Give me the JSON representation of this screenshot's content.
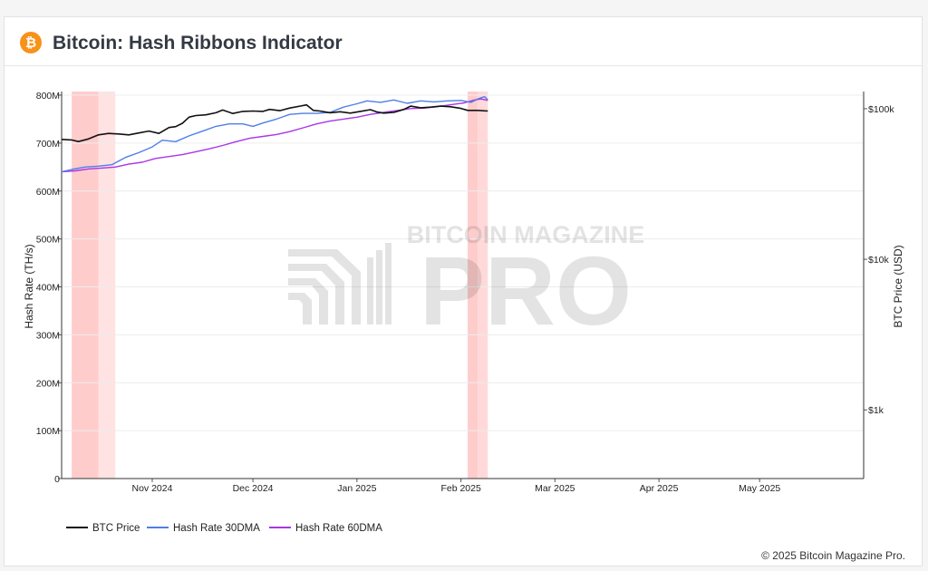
{
  "header": {
    "logo_glyph": "₿",
    "title": "Bitcoin: Hash Ribbons Indicator"
  },
  "footer": {
    "copyright": "© 2025 Bitcoin Magazine Pro."
  },
  "watermark": {
    "top": "BITCOIN MAGAZINE",
    "main": "PRO"
  },
  "chart_data": {
    "type": "line",
    "title": "Bitcoin: Hash Ribbons Indicator",
    "ylabel": "Hash Rate (TH/s)",
    "y2label": "BTC Price (USD)",
    "ylim": [
      0,
      800000000
    ],
    "y_ticks": [
      {
        "value": 0,
        "label": "0"
      },
      {
        "value": 100000000,
        "label": "100M"
      },
      {
        "value": 200000000,
        "label": "200M"
      },
      {
        "value": 300000000,
        "label": "300M"
      },
      {
        "value": 400000000,
        "label": "400M"
      },
      {
        "value": 500000000,
        "label": "500M"
      },
      {
        "value": 600000000,
        "label": "600M"
      },
      {
        "value": 700000000,
        "label": "700M"
      },
      {
        "value": 800000000,
        "label": "800M"
      }
    ],
    "y2_scale": "log",
    "y2lim": [
      350,
      130000
    ],
    "y2_ticks": [
      {
        "value": 1000,
        "label": "$1k"
      },
      {
        "value": 10000,
        "label": "$10k"
      },
      {
        "value": 100000,
        "label": "$100k"
      }
    ],
    "xlim": [
      "2024-10-05",
      "2025-06-01"
    ],
    "x_ticks": [
      {
        "date": "2024-11-01",
        "label": "Nov 2024"
      },
      {
        "date": "2024-12-01",
        "label": "Dec 2024"
      },
      {
        "date": "2025-01-01",
        "label": "Jan 2025"
      },
      {
        "date": "2025-02-01",
        "label": "Feb 2025"
      },
      {
        "date": "2025-03-01",
        "label": "Mar 2025"
      },
      {
        "date": "2025-04-01",
        "label": "Apr 2025"
      },
      {
        "date": "2025-05-01",
        "label": "May 2025"
      }
    ],
    "grid": true,
    "legend_position": "bottom-left",
    "capitulation_bands": [
      {
        "start": "2024-10-08",
        "end": "2024-10-16",
        "color": "#ffcccc"
      },
      {
        "start": "2024-10-16",
        "end": "2024-10-21",
        "color": "#ffe2e2"
      },
      {
        "start": "2025-02-03",
        "end": "2025-02-06",
        "color": "#ffcccc"
      },
      {
        "start": "2025-02-06",
        "end": "2025-02-09",
        "color": "#ffd9d9"
      }
    ],
    "series": [
      {
        "name": "BTC Price",
        "color": "#111111",
        "axis": "right",
        "x": [
          "2024-10-05",
          "2024-10-08",
          "2024-10-10",
          "2024-10-13",
          "2024-10-16",
          "2024-10-19",
          "2024-10-22",
          "2024-10-25",
          "2024-10-28",
          "2024-10-31",
          "2024-11-03",
          "2024-11-06",
          "2024-11-08",
          "2024-11-10",
          "2024-11-12",
          "2024-11-14",
          "2024-11-17",
          "2024-11-20",
          "2024-11-22",
          "2024-11-25",
          "2024-11-28",
          "2024-12-01",
          "2024-12-04",
          "2024-12-06",
          "2024-12-09",
          "2024-12-12",
          "2024-12-15",
          "2024-12-17",
          "2024-12-19",
          "2024-12-21",
          "2024-12-24",
          "2024-12-27",
          "2024-12-30",
          "2025-01-02",
          "2025-01-05",
          "2025-01-07",
          "2025-01-09",
          "2025-01-12",
          "2025-01-15",
          "2025-01-17",
          "2025-01-20",
          "2025-01-23",
          "2025-01-26",
          "2025-01-29",
          "2025-02-01",
          "2025-02-03",
          "2025-02-06",
          "2025-02-09"
        ],
        "values": [
          62500,
          62000,
          60500,
          63000,
          67000,
          68500,
          68000,
          67000,
          69000,
          71000,
          68500,
          75000,
          76000,
          80000,
          88000,
          90000,
          91000,
          94000,
          98000,
          93000,
          96000,
          96500,
          96000,
          99000,
          97000,
          101000,
          104000,
          106000,
          97500,
          96500,
          94000,
          95500,
          93500,
          96000,
          98500,
          95000,
          93500,
          94500,
          99000,
          104000,
          101500,
          102500,
          104000,
          103000,
          100500,
          97500,
          97500,
          96500
        ]
      },
      {
        "name": "Hash Rate 30DMA",
        "color": "#4f7ee8",
        "axis": "left",
        "x": [
          "2024-10-05",
          "2024-10-08",
          "2024-10-12",
          "2024-10-16",
          "2024-10-20",
          "2024-10-24",
          "2024-10-28",
          "2024-11-01",
          "2024-11-04",
          "2024-11-08",
          "2024-11-12",
          "2024-11-16",
          "2024-11-20",
          "2024-11-24",
          "2024-11-28",
          "2024-12-01",
          "2024-12-04",
          "2024-12-08",
          "2024-12-12",
          "2024-12-16",
          "2024-12-20",
          "2024-12-24",
          "2024-12-28",
          "2025-01-01",
          "2025-01-04",
          "2025-01-08",
          "2025-01-12",
          "2025-01-16",
          "2025-01-20",
          "2025-01-24",
          "2025-01-28",
          "2025-02-01",
          "2025-02-04",
          "2025-02-06",
          "2025-02-08",
          "2025-02-09"
        ],
        "values": [
          640000000,
          645000000,
          650000000,
          652000000,
          655000000,
          670000000,
          680000000,
          692000000,
          706000000,
          703000000,
          715000000,
          725000000,
          735000000,
          740000000,
          740000000,
          735000000,
          742000000,
          750000000,
          760000000,
          762000000,
          762000000,
          764000000,
          775000000,
          782000000,
          788000000,
          785000000,
          790000000,
          783000000,
          788000000,
          786000000,
          788000000,
          789000000,
          785000000,
          792000000,
          797000000,
          790000000
        ]
      },
      {
        "name": "Hash Rate 60DMA",
        "color": "#a836e8",
        "axis": "left",
        "x": [
          "2024-10-05",
          "2024-10-09",
          "2024-10-13",
          "2024-10-17",
          "2024-10-21",
          "2024-10-25",
          "2024-10-29",
          "2024-11-02",
          "2024-11-06",
          "2024-11-10",
          "2024-11-14",
          "2024-11-18",
          "2024-11-22",
          "2024-11-26",
          "2024-11-30",
          "2024-12-04",
          "2024-12-08",
          "2024-12-12",
          "2024-12-16",
          "2024-12-20",
          "2024-12-24",
          "2024-12-28",
          "2025-01-01",
          "2025-01-05",
          "2025-01-09",
          "2025-01-13",
          "2025-01-17",
          "2025-01-21",
          "2025-01-25",
          "2025-01-29",
          "2025-02-02",
          "2025-02-05",
          "2025-02-07",
          "2025-02-09"
        ],
        "values": [
          640000000,
          642000000,
          646000000,
          648000000,
          650000000,
          656000000,
          660000000,
          668000000,
          672000000,
          676000000,
          682000000,
          688000000,
          695000000,
          703000000,
          710000000,
          714000000,
          718000000,
          724000000,
          732000000,
          740000000,
          746000000,
          750000000,
          754000000,
          760000000,
          764000000,
          768000000,
          772000000,
          773000000,
          776000000,
          780000000,
          784000000,
          790000000,
          792000000,
          789000000
        ]
      }
    ]
  }
}
